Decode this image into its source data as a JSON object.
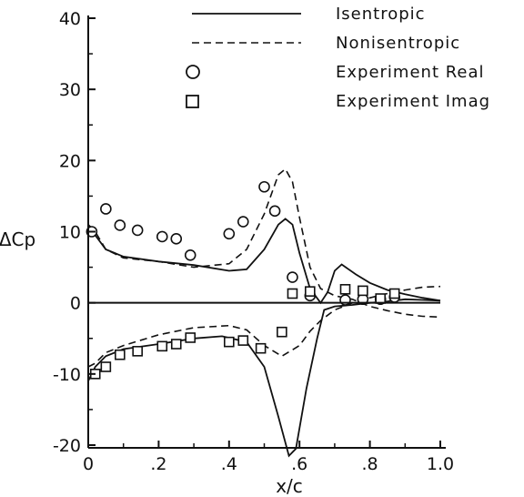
{
  "chart_data": {
    "type": "line",
    "title": "",
    "xlabel": "x/c",
    "ylabel": "ΔCp",
    "xlim": [
      0,
      1.0
    ],
    "ylim": [
      -21,
      41
    ],
    "xticks": [
      0,
      0.2,
      0.4,
      0.6,
      0.8,
      1.0
    ],
    "xtick_labels": [
      "0",
      ".2",
      ".4",
      ".6",
      ".8",
      "1.0"
    ],
    "yticks": [
      -20,
      -10,
      0,
      10,
      20,
      30,
      40
    ],
    "ytick_labels": [
      "-20",
      "-10",
      "0",
      "10",
      "20",
      "30",
      "40"
    ],
    "grid": false,
    "legend_position": "top-right",
    "series": [
      {
        "name": "Isentropic",
        "style": "solid",
        "part": "real",
        "points": [
          [
            0,
            10
          ],
          [
            0.01,
            10.5
          ],
          [
            0.02,
            9.5
          ],
          [
            0.05,
            7.5
          ],
          [
            0.1,
            6.5
          ],
          [
            0.2,
            5.8
          ],
          [
            0.3,
            5.3
          ],
          [
            0.4,
            4.5
          ],
          [
            0.45,
            4.7
          ],
          [
            0.5,
            7.5
          ],
          [
            0.54,
            11
          ],
          [
            0.56,
            11.8
          ],
          [
            0.58,
            11
          ],
          [
            0.6,
            7
          ],
          [
            0.63,
            2
          ],
          [
            0.66,
            0
          ],
          [
            0.68,
            1.5
          ],
          [
            0.7,
            4.5
          ],
          [
            0.72,
            5.4
          ],
          [
            0.76,
            4
          ],
          [
            0.8,
            2.8
          ],
          [
            0.85,
            1.8
          ],
          [
            0.9,
            1.2
          ],
          [
            0.95,
            0.7
          ],
          [
            1.0,
            0.3
          ]
        ]
      },
      {
        "name": "Isentropic",
        "style": "solid",
        "part": "imag",
        "points": [
          [
            0,
            -11
          ],
          [
            0.02,
            -9
          ],
          [
            0.05,
            -7.5
          ],
          [
            0.1,
            -6.5
          ],
          [
            0.2,
            -5.8
          ],
          [
            0.3,
            -5
          ],
          [
            0.38,
            -4.7
          ],
          [
            0.45,
            -5.5
          ],
          [
            0.5,
            -9
          ],
          [
            0.54,
            -16
          ],
          [
            0.57,
            -21.5
          ],
          [
            0.59,
            -20.5
          ],
          [
            0.62,
            -12
          ],
          [
            0.65,
            -5
          ],
          [
            0.67,
            -1
          ],
          [
            0.7,
            -0.5
          ],
          [
            0.75,
            -0.3
          ],
          [
            0.8,
            0
          ],
          [
            0.85,
            0.2
          ],
          [
            0.9,
            0.5
          ],
          [
            0.95,
            0.4
          ],
          [
            1.0,
            0.3
          ]
        ]
      },
      {
        "name": "Nonisentropic",
        "style": "dashed",
        "part": "real",
        "points": [
          [
            0,
            11
          ],
          [
            0.02,
            10
          ],
          [
            0.05,
            7.5
          ],
          [
            0.1,
            6.3
          ],
          [
            0.2,
            5.8
          ],
          [
            0.3,
            5
          ],
          [
            0.4,
            5.5
          ],
          [
            0.45,
            7.5
          ],
          [
            0.5,
            12.5
          ],
          [
            0.54,
            18
          ],
          [
            0.56,
            18.8
          ],
          [
            0.58,
            17
          ],
          [
            0.6,
            12
          ],
          [
            0.63,
            5
          ],
          [
            0.66,
            2
          ],
          [
            0.7,
            1
          ],
          [
            0.75,
            0.5
          ],
          [
            0.8,
            -0.5
          ],
          [
            0.85,
            -1.1
          ],
          [
            0.9,
            -1.6
          ],
          [
            0.95,
            -1.9
          ],
          [
            1.0,
            -2
          ]
        ]
      },
      {
        "name": "Nonisentropic",
        "style": "dashed",
        "part": "imag",
        "points": [
          [
            0,
            -9
          ],
          [
            0.02,
            -8.5
          ],
          [
            0.05,
            -7
          ],
          [
            0.1,
            -6
          ],
          [
            0.2,
            -4.5
          ],
          [
            0.3,
            -3.5
          ],
          [
            0.4,
            -3.2
          ],
          [
            0.45,
            -3.8
          ],
          [
            0.5,
            -6
          ],
          [
            0.55,
            -7.5
          ],
          [
            0.6,
            -6
          ],
          [
            0.63,
            -4
          ],
          [
            0.66,
            -2.5
          ],
          [
            0.7,
            -1
          ],
          [
            0.75,
            0
          ],
          [
            0.8,
            0.7
          ],
          [
            0.85,
            1.3
          ],
          [
            0.9,
            1.8
          ],
          [
            0.95,
            2.2
          ],
          [
            1.0,
            2.3
          ]
        ]
      }
    ],
    "experiment_real": {
      "name": "Experiment Real",
      "marker": "circle",
      "points": [
        [
          0.01,
          10
        ],
        [
          0.05,
          13.2
        ],
        [
          0.09,
          10.9
        ],
        [
          0.14,
          10.2
        ],
        [
          0.21,
          9.3
        ],
        [
          0.25,
          9
        ],
        [
          0.29,
          6.7
        ],
        [
          0.4,
          9.7
        ],
        [
          0.44,
          11.4
        ],
        [
          0.5,
          16.3
        ],
        [
          0.53,
          12.9
        ],
        [
          0.58,
          3.6
        ],
        [
          0.63,
          1
        ],
        [
          0.73,
          0.4
        ],
        [
          0.78,
          0.5
        ],
        [
          0.83,
          0.5
        ],
        [
          0.87,
          0.8
        ]
      ]
    },
    "experiment_imag": {
      "name": "Experiment Imag",
      "marker": "square",
      "points": [
        [
          0.02,
          -10
        ],
        [
          0.05,
          -9
        ],
        [
          0.09,
          -7.3
        ],
        [
          0.14,
          -6.8
        ],
        [
          0.21,
          -6.1
        ],
        [
          0.25,
          -5.8
        ],
        [
          0.29,
          -4.9
        ],
        [
          0.4,
          -5.5
        ],
        [
          0.44,
          -5.3
        ],
        [
          0.49,
          -6.4
        ],
        [
          0.55,
          -4.1
        ],
        [
          0.58,
          1.3
        ],
        [
          0.63,
          1.6
        ],
        [
          0.73,
          1.9
        ],
        [
          0.78,
          1.7
        ],
        [
          0.83,
          0.6
        ],
        [
          0.87,
          1.3
        ]
      ]
    }
  }
}
